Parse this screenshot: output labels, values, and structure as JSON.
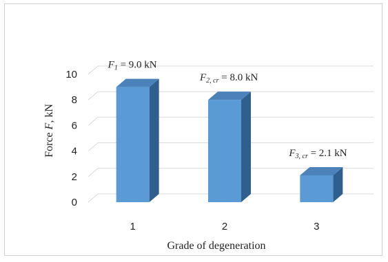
{
  "chart_data": {
    "type": "bar",
    "categories": [
      "1",
      "2",
      "3"
    ],
    "values": [
      9.0,
      8.0,
      2.1
    ],
    "xlabel": "Grade of degeneration",
    "ylabel": {
      "prefix": "Force ",
      "var": "F",
      "suffix": ", kN"
    },
    "ylim": [
      0,
      10
    ],
    "yticks": [
      "0",
      "2",
      "4",
      "6",
      "8",
      "10"
    ],
    "grid": true,
    "bar_style": "3d",
    "colors": {
      "bar_front": "#5b9bd5",
      "bar_side": "#2e5f8f",
      "bar_top": "#4a82b9",
      "grid": "#d9d9d9"
    },
    "data_labels": [
      {
        "var": "F",
        "sub": "1",
        "text": " = 9.0 kN"
      },
      {
        "var": "F",
        "sub": "2, cr",
        "text": " = 8.0 kN"
      },
      {
        "var": "F",
        "sub": "3, cr",
        "text": " = 2.1 kN"
      }
    ]
  }
}
